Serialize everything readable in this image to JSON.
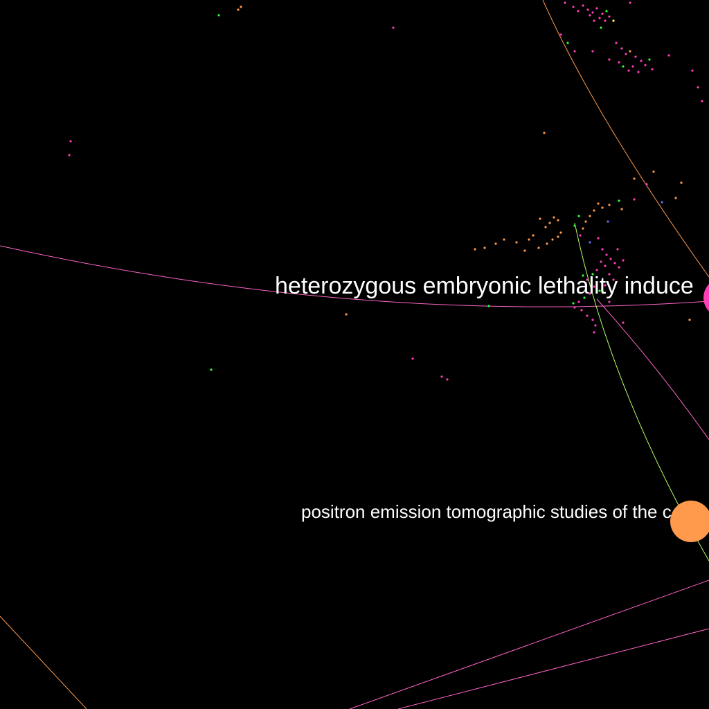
{
  "background_color": "#000000",
  "colors": {
    "magenta": "#ff3fb4",
    "orange": "#ff9a4d",
    "green": "#33ff33",
    "lime_edge": "#b7ff66",
    "pink_edge": "#ff66c7",
    "blue": "#6a6aff",
    "yellow": "#ffff44",
    "label": "#ffffff"
  },
  "labels": {
    "top_node": "heterozygous embryonic lethality induce",
    "bottom_node": "positron emission tomographic studies of the c"
  }
}
